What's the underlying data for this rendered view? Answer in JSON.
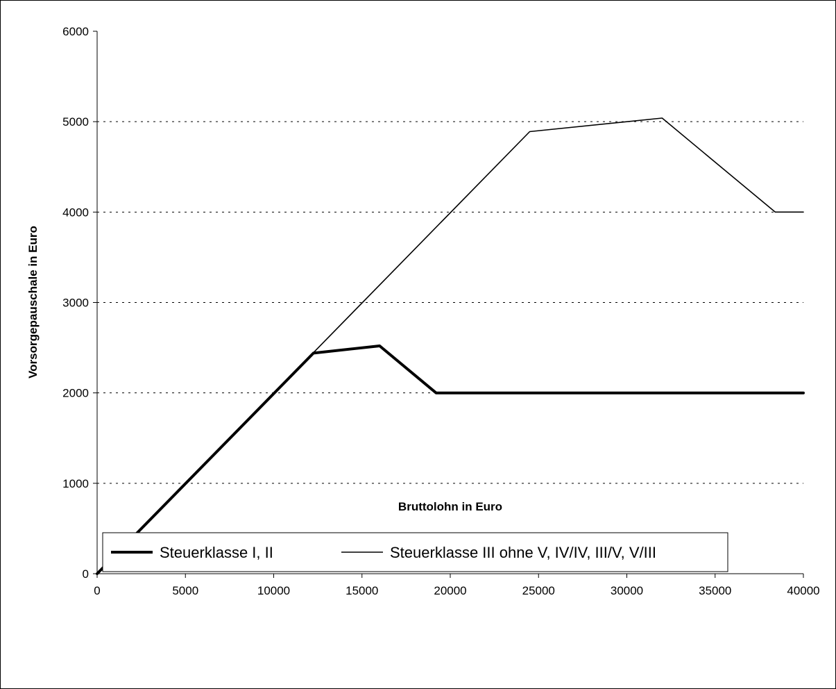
{
  "chart_data": {
    "type": "line",
    "title": "",
    "xlabel": "Bruttolohn in Euro",
    "ylabel": "Vorsorgepauschale in Euro",
    "xlim": [
      0,
      40000
    ],
    "ylim": [
      0,
      6000
    ],
    "x_ticks": [
      "0",
      "5000",
      "10000",
      "15000",
      "20000",
      "25000",
      "30000",
      "35000",
      "40000"
    ],
    "y_ticks": [
      "0",
      "1000",
      "2000",
      "3000",
      "4000",
      "5000",
      "6000"
    ],
    "grid": "horizontal dotted",
    "legend_position": "bottom",
    "series": [
      {
        "name": "Steuerklasse I, II",
        "style": "thick",
        "color": "#000000",
        "points": [
          [
            0,
            0
          ],
          [
            12250,
            2440
          ],
          [
            16000,
            2520
          ],
          [
            19200,
            2000
          ],
          [
            40000,
            2000
          ]
        ]
      },
      {
        "name": "Steuerklasse III ohne V, IV/IV, III/V, V/III",
        "style": "thin",
        "color": "#000000",
        "points": [
          [
            0,
            0
          ],
          [
            24500,
            4890
          ],
          [
            32000,
            5040
          ],
          [
            38400,
            4000
          ],
          [
            40000,
            4000
          ]
        ]
      }
    ]
  }
}
